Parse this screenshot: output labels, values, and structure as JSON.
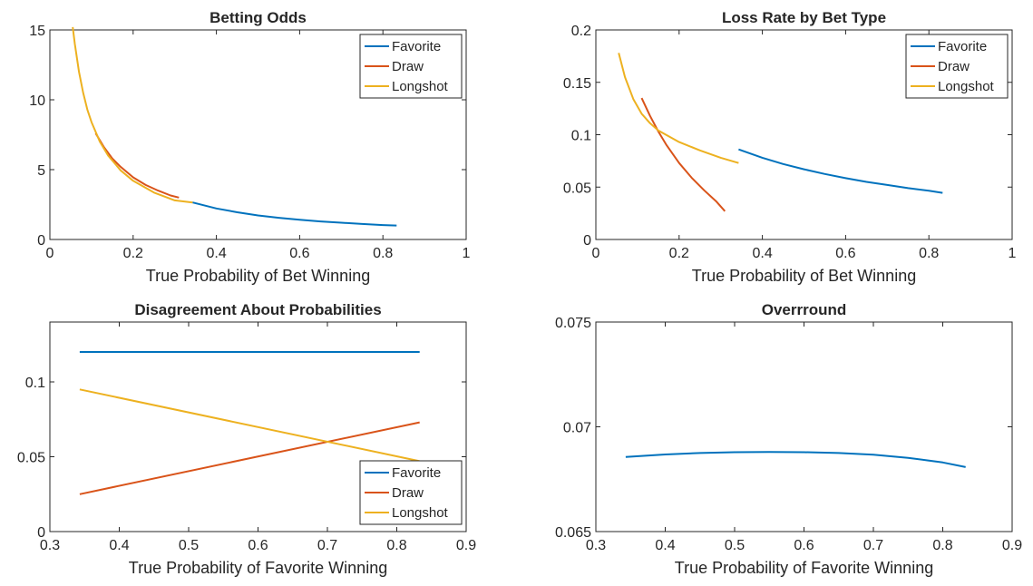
{
  "colors": {
    "favorite": "#0072BD",
    "draw": "#D95319",
    "longshot": "#EDB120",
    "axis": "#262626"
  },
  "chart_data": [
    {
      "type": "line",
      "title": "Betting Odds",
      "xlabel": "True Probability of Bet Winning",
      "ylabel": "",
      "xlim": [
        0,
        1
      ],
      "ylim": [
        0,
        15
      ],
      "xticks": [
        0,
        0.2,
        0.4,
        0.6,
        0.8,
        1
      ],
      "xtick_labels": [
        "0",
        "0.2",
        "0.4",
        "0.6",
        "0.8",
        "1"
      ],
      "yticks": [
        0,
        5,
        10,
        15
      ],
      "ytick_labels": [
        "0",
        "5",
        "10",
        "15"
      ],
      "legend": {
        "position": "top-right",
        "entries": [
          "Favorite",
          "Draw",
          "Longshot"
        ]
      },
      "series": [
        {
          "name": "Favorite",
          "color_key": "favorite",
          "x": [
            0.343,
            0.4,
            0.45,
            0.5,
            0.55,
            0.6,
            0.65,
            0.7,
            0.75,
            0.8,
            0.833
          ],
          "y": [
            2.65,
            2.22,
            1.95,
            1.72,
            1.55,
            1.41,
            1.29,
            1.2,
            1.11,
            1.03,
            1.0
          ]
        },
        {
          "name": "Draw",
          "color_key": "draw",
          "x": [
            0.11,
            0.13,
            0.15,
            0.17,
            0.2,
            0.23,
            0.26,
            0.29,
            0.31
          ],
          "y": [
            7.6,
            6.6,
            5.8,
            5.2,
            4.45,
            3.9,
            3.5,
            3.15,
            3.0
          ]
        },
        {
          "name": "Longshot",
          "color_key": "longshot",
          "x": [
            0.055,
            0.06,
            0.07,
            0.08,
            0.09,
            0.1,
            0.12,
            0.14,
            0.17,
            0.2,
            0.25,
            0.3,
            0.343
          ],
          "y": [
            15.2,
            14.0,
            12.0,
            10.5,
            9.3,
            8.4,
            7.0,
            6.0,
            4.95,
            4.2,
            3.36,
            2.8,
            2.65
          ]
        }
      ]
    },
    {
      "type": "line",
      "title": "Loss Rate by Bet Type",
      "xlabel": "True Probability of Bet Winning",
      "ylabel": "",
      "xlim": [
        0,
        1
      ],
      "ylim": [
        0,
        0.2
      ],
      "xticks": [
        0,
        0.2,
        0.4,
        0.6,
        0.8,
        1
      ],
      "xtick_labels": [
        "0",
        "0.2",
        "0.4",
        "0.6",
        "0.8",
        "1"
      ],
      "yticks": [
        0,
        0.05,
        0.1,
        0.15,
        0.2
      ],
      "ytick_labels": [
        "0",
        "0.05",
        "0.1",
        "0.15",
        "0.2"
      ],
      "legend": {
        "position": "top-right",
        "entries": [
          "Favorite",
          "Draw",
          "Longshot"
        ]
      },
      "series": [
        {
          "name": "Favorite",
          "color_key": "favorite",
          "x": [
            0.343,
            0.4,
            0.45,
            0.5,
            0.55,
            0.6,
            0.65,
            0.7,
            0.75,
            0.8,
            0.833
          ],
          "y": [
            0.086,
            0.078,
            0.072,
            0.067,
            0.0625,
            0.0585,
            0.055,
            0.052,
            0.049,
            0.0465,
            0.0445
          ]
        },
        {
          "name": "Draw",
          "color_key": "draw",
          "x": [
            0.11,
            0.13,
            0.15,
            0.17,
            0.2,
            0.23,
            0.26,
            0.29,
            0.31
          ],
          "y": [
            0.135,
            0.118,
            0.103,
            0.09,
            0.073,
            0.059,
            0.047,
            0.036,
            0.027
          ]
        },
        {
          "name": "Longshot",
          "color_key": "longshot",
          "x": [
            0.055,
            0.07,
            0.09,
            0.11,
            0.13,
            0.15,
            0.2,
            0.25,
            0.3,
            0.343
          ],
          "y": [
            0.178,
            0.155,
            0.134,
            0.12,
            0.111,
            0.104,
            0.093,
            0.085,
            0.078,
            0.073
          ]
        }
      ]
    },
    {
      "type": "line",
      "title": "Disagreement About Probabilities",
      "xlabel": "True Probability of Favorite Winning",
      "ylabel": "",
      "xlim": [
        0.3,
        0.9
      ],
      "ylim": [
        0,
        0.14
      ],
      "xticks": [
        0.3,
        0.4,
        0.5,
        0.6,
        0.7,
        0.8,
        0.9
      ],
      "xtick_labels": [
        "0.3",
        "0.4",
        "0.5",
        "0.6",
        "0.7",
        "0.8",
        "0.9"
      ],
      "yticks": [
        0,
        0.05,
        0.1
      ],
      "ytick_labels": [
        "0",
        "0.05",
        "0.1"
      ],
      "legend": {
        "position": "bottom-right",
        "entries": [
          "Favorite",
          "Draw",
          "Longshot"
        ]
      },
      "series": [
        {
          "name": "Favorite",
          "color_key": "favorite",
          "x": [
            0.343,
            0.833
          ],
          "y": [
            0.12,
            0.12
          ]
        },
        {
          "name": "Draw",
          "color_key": "draw",
          "x": [
            0.343,
            0.833
          ],
          "y": [
            0.025,
            0.073
          ]
        },
        {
          "name": "Longshot",
          "color_key": "longshot",
          "x": [
            0.343,
            0.833
          ],
          "y": [
            0.095,
            0.047
          ]
        }
      ]
    },
    {
      "type": "line",
      "title": "Overrround",
      "xlabel": "True Probability of Favorite Winning",
      "ylabel": "",
      "xlim": [
        0.3,
        0.9
      ],
      "ylim": [
        0.065,
        0.075
      ],
      "xticks": [
        0.3,
        0.4,
        0.5,
        0.6,
        0.7,
        0.8,
        0.9
      ],
      "xtick_labels": [
        "0.3",
        "0.4",
        "0.5",
        "0.6",
        "0.7",
        "0.8",
        "0.9"
      ],
      "yticks": [
        0.065,
        0.07,
        0.075
      ],
      "ytick_labels": [
        "0.065",
        "0.07",
        "0.075"
      ],
      "legend": null,
      "series": [
        {
          "name": "Favorite",
          "color_key": "favorite",
          "x": [
            0.343,
            0.4,
            0.45,
            0.5,
            0.55,
            0.6,
            0.65,
            0.7,
            0.75,
            0.8,
            0.833
          ],
          "y": [
            0.06856,
            0.06868,
            0.06875,
            0.06879,
            0.0688,
            0.06879,
            0.06875,
            0.06867,
            0.06852,
            0.0683,
            0.06808
          ]
        }
      ]
    }
  ]
}
